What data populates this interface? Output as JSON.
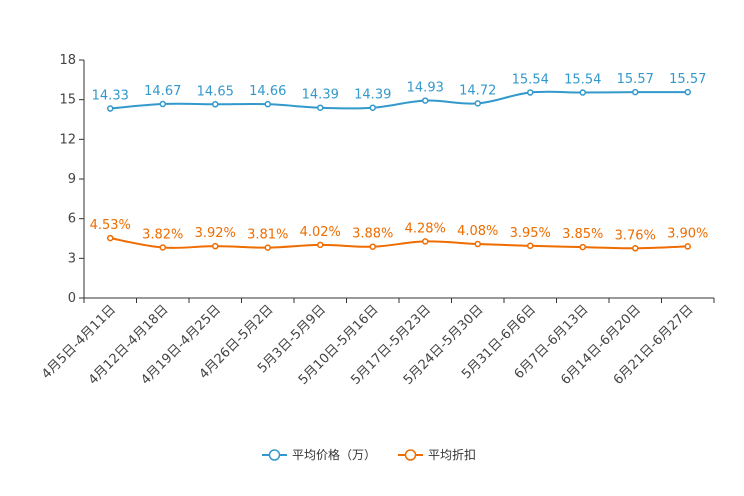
{
  "chart_data": {
    "type": "line",
    "title": "",
    "xlabel": "",
    "ylabel": "",
    "ylim": [
      0,
      18
    ],
    "yticks": [
      0,
      3,
      6,
      9,
      12,
      15,
      18
    ],
    "grid": false,
    "legend_position": "bottom-center",
    "categories": [
      "4月5日-4月11日",
      "4月12日-4月18日",
      "4月19日-4月25日",
      "4月26日-5月2日",
      "5月3日-5月9日",
      "5月10日-5月16日",
      "5月17日-5月23日",
      "5月24日-5月30日",
      "5月31日-6月6日",
      "6月7日-6月13日",
      "6月14日-6月20日",
      "6月21日-6月27日"
    ],
    "series": [
      {
        "name": "平均价格（万）",
        "color": "#3399cc",
        "values": [
          14.33,
          14.67,
          14.65,
          14.66,
          14.39,
          14.39,
          14.93,
          14.72,
          15.54,
          15.54,
          15.57,
          15.57
        ],
        "labels": [
          "14.33",
          "14.67",
          "14.65",
          "14.66",
          "14.39",
          "14.39",
          "14.93",
          "14.72",
          "15.54",
          "15.54",
          "15.57",
          "15.57"
        ]
      },
      {
        "name": "平均折扣",
        "color": "#ee6c00",
        "values": [
          4.53,
          3.82,
          3.92,
          3.81,
          4.02,
          3.88,
          4.28,
          4.08,
          3.95,
          3.85,
          3.76,
          3.9
        ],
        "labels": [
          "4.53%",
          "3.82%",
          "3.92%",
          "3.81%",
          "4.02%",
          "3.88%",
          "4.28%",
          "4.08%",
          "3.95%",
          "3.85%",
          "3.76%",
          "3.90%"
        ]
      }
    ]
  }
}
